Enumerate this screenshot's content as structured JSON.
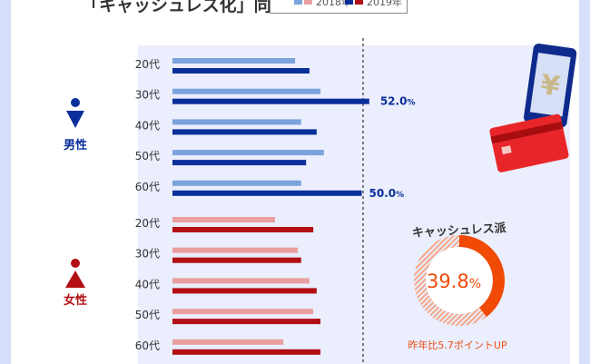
{
  "title": "「キャッシュレス化」同意率",
  "legend": {
    "y2018": "2018年",
    "y2019": "2019年"
  },
  "colors": {
    "male2018": "#7ba3dd",
    "male2019": "#0a2f9a",
    "female2018": "#e8a0a0",
    "female2019": "#b30f14",
    "donut": "#f04a06"
  },
  "groups": {
    "male": "男性",
    "female": "女性"
  },
  "chart_data": {
    "type": "bar",
    "orientation": "horizontal",
    "categories": [
      "20代",
      "30代",
      "40代",
      "50代",
      "60代"
    ],
    "reference_line": 50,
    "male": {
      "2018": [
        32.4,
        39.1,
        34.0,
        40.0,
        34.0
      ],
      "2019": [
        36.2,
        52.0,
        38.1,
        35.3,
        50.0
      ]
    },
    "female": {
      "2018": [
        27.1,
        33.1,
        36.2,
        37.2,
        29.3
      ],
      "2019": [
        37.2,
        34.0,
        38.1,
        39.1,
        39.1
      ]
    },
    "labels": {
      "male_30_2019": "52.0",
      "male_60_2019": "50.0",
      "unit": "%"
    }
  },
  "donut": {
    "title": "キャッシュレス派",
    "value": 39.8,
    "value_label": "39.8",
    "unit": "%",
    "note": "昨年比5.7ポイントUP"
  }
}
